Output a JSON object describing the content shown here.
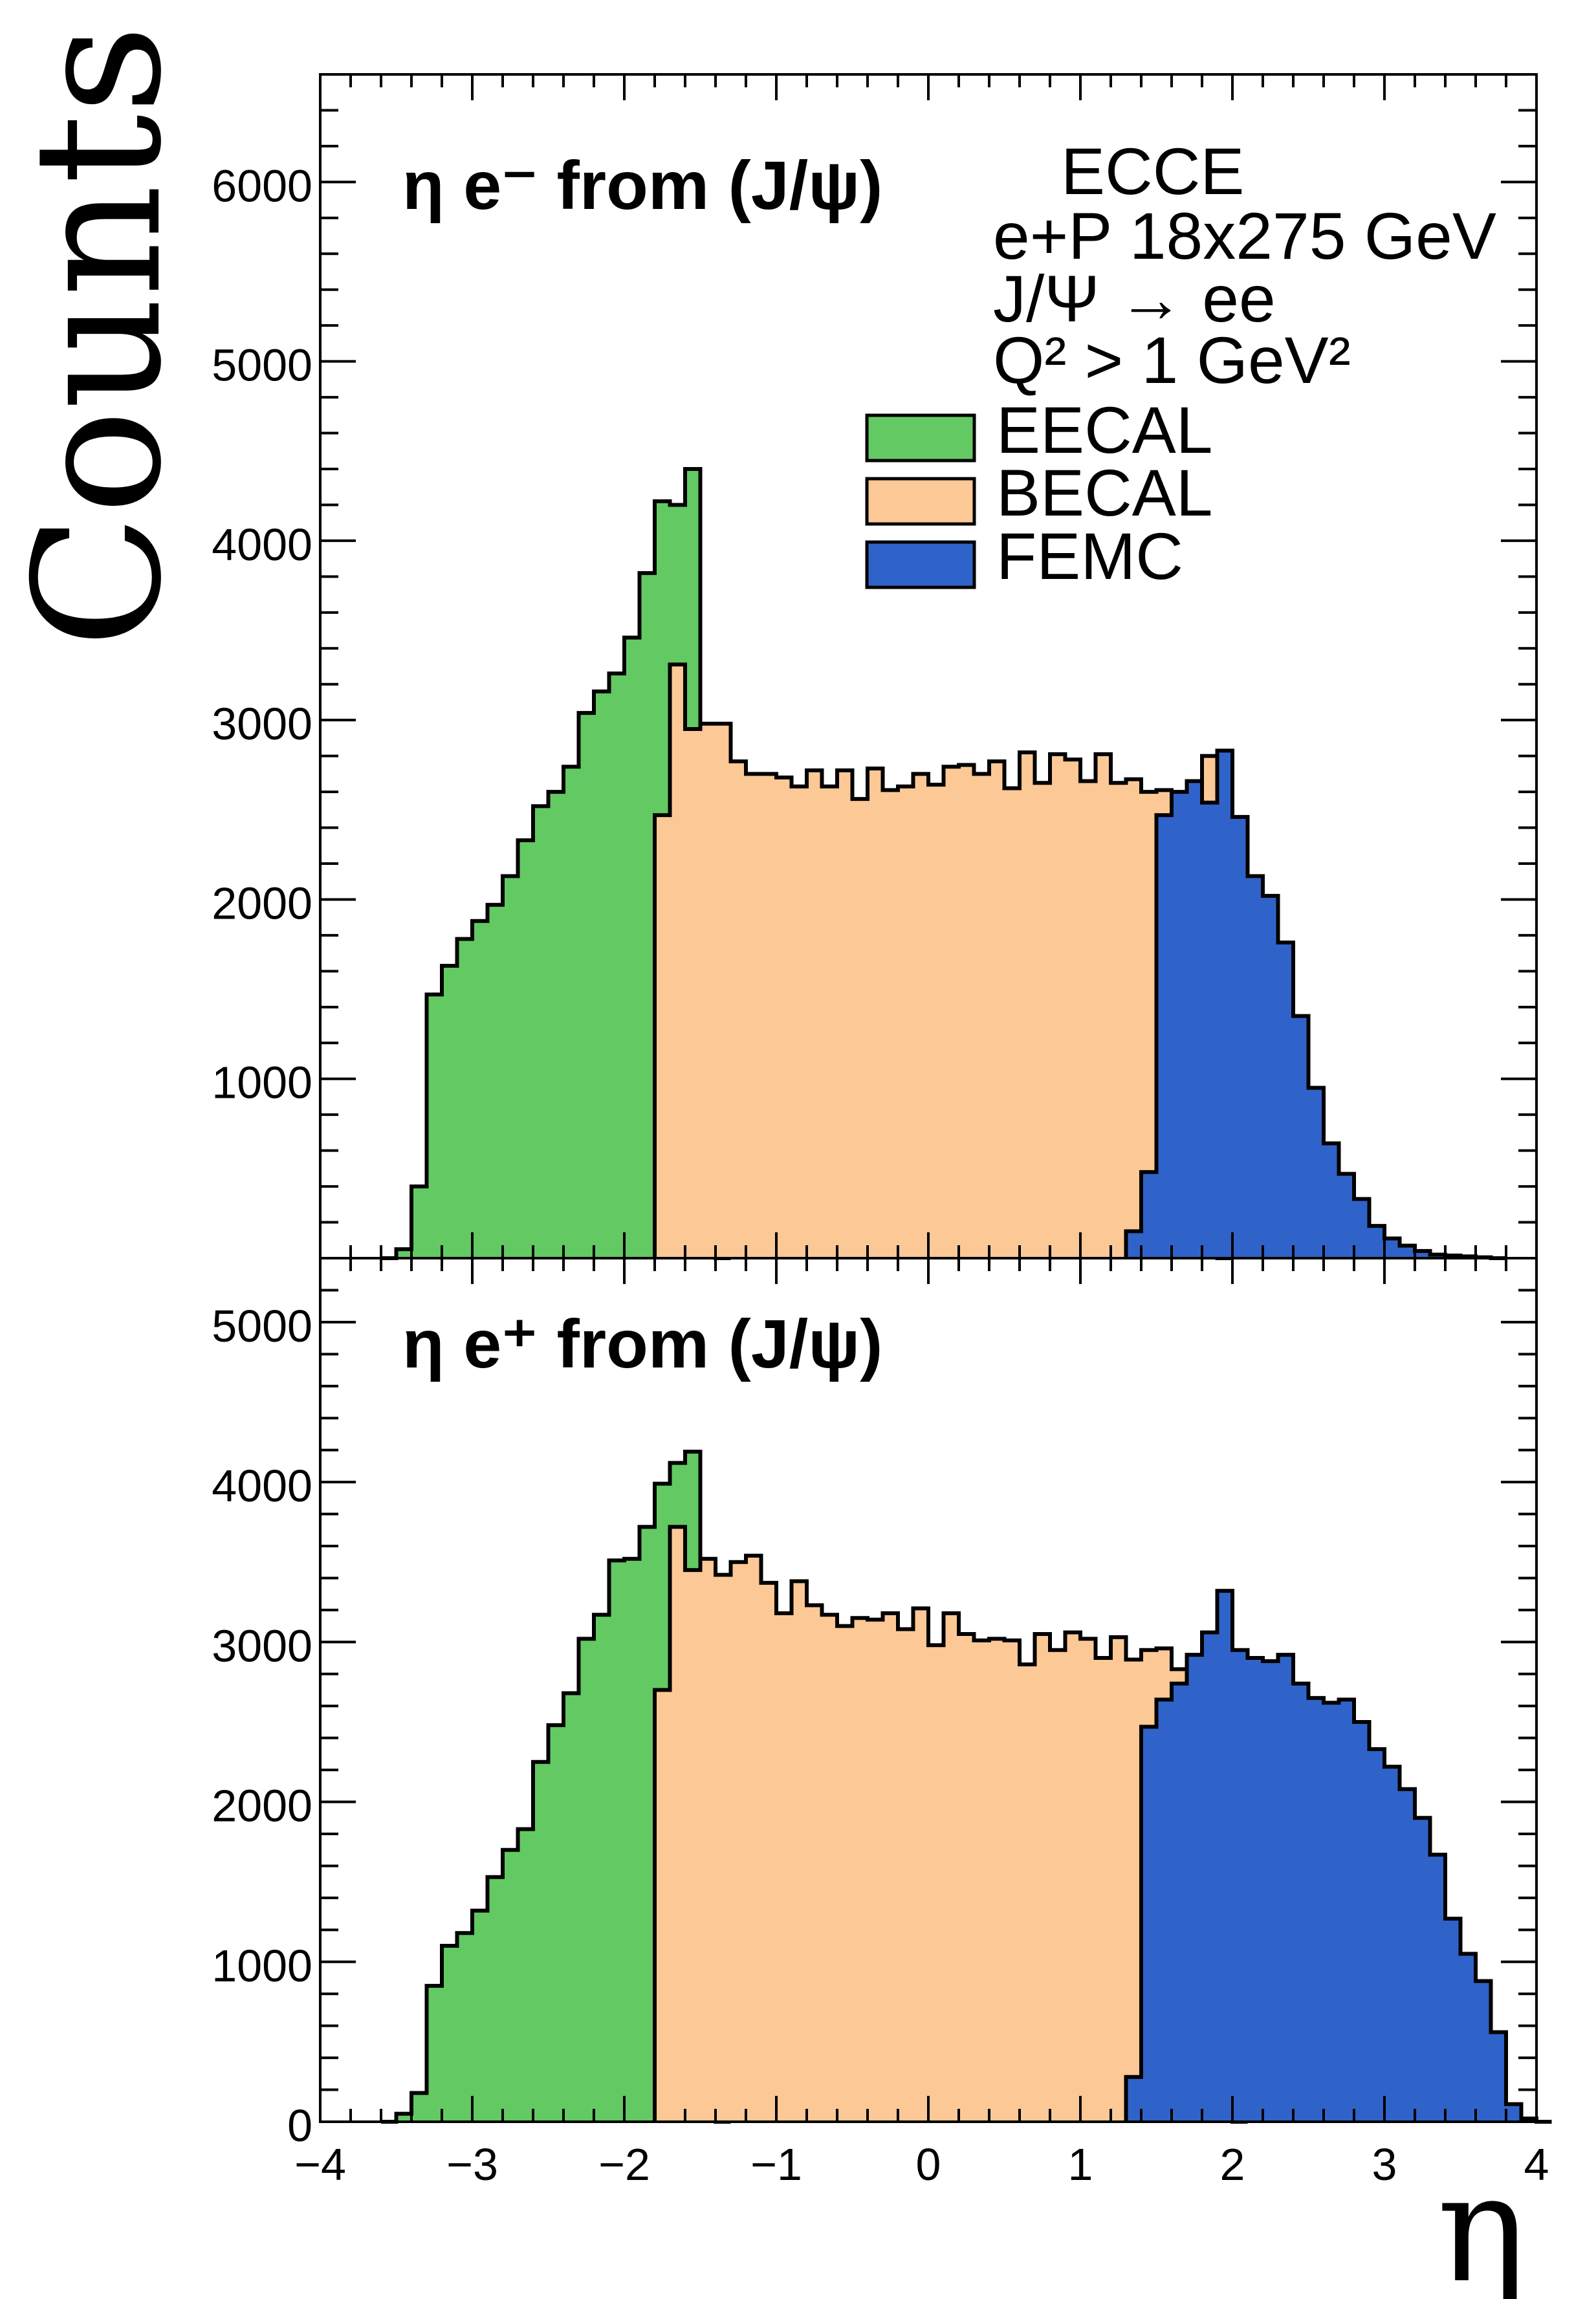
{
  "figure": {
    "ylabel": "Counts",
    "xlabel": "η",
    "experiment": "ECCE",
    "beam": "e+P 18x275 GeV",
    "decay": "J/Ψ → ee",
    "cut": "Q² > 1 GeV²"
  },
  "legend": {
    "placement": "top-right of upper panel",
    "entries": [
      {
        "label": "EECAL",
        "color": "#63c963"
      },
      {
        "label": "BECAL",
        "color": "#fcc896"
      },
      {
        "label": "FEMC",
        "color": "#3063c9"
      }
    ]
  },
  "chart_data": [
    {
      "type": "histogram",
      "title": "η e⁻ from (J/ψ)",
      "xlabel": "η",
      "ylabel": "Counts",
      "xlim": [
        -4,
        4
      ],
      "ylim": [
        0,
        6600
      ],
      "yticks": [
        1000,
        2000,
        3000,
        4000,
        5000,
        6000
      ],
      "bin_width": 0.1,
      "series": [
        {
          "name": "EECAL",
          "color": "#63c963",
          "x_start": -3.6,
          "values": [
            0,
            50,
            400,
            1470,
            1630,
            1780,
            1880,
            1970,
            2130,
            2330,
            2520,
            2600,
            2740,
            3040,
            3160,
            3260,
            3460,
            3820,
            4220,
            4200,
            4400,
            490,
            0
          ]
        },
        {
          "name": "BECAL",
          "color": "#fcc896",
          "x_start": -1.8,
          "values": [
            2470,
            3310,
            2950,
            2980,
            2980,
            2770,
            2700,
            2700,
            2680,
            2630,
            2720,
            2630,
            2720,
            2560,
            2730,
            2610,
            2630,
            2700,
            2640,
            2740,
            2750,
            2700,
            2770,
            2620,
            2820,
            2650,
            2810,
            2780,
            2660,
            2810,
            2650,
            2670,
            2600,
            2610,
            2580,
            2300,
            2800,
            0
          ]
        },
        {
          "name": "FEMC",
          "color": "#3063c9",
          "x_start": 1.3,
          "values": [
            150,
            480,
            2470,
            2600,
            2660,
            2540,
            2830,
            2460,
            2130,
            2020,
            1760,
            1350,
            950,
            640,
            470,
            330,
            180,
            110,
            70,
            40,
            20,
            15,
            10,
            5,
            0
          ]
        }
      ]
    },
    {
      "type": "histogram",
      "title": "η e⁺ from (J/ψ)",
      "xlabel": "η",
      "ylabel": "Counts",
      "xlim": [
        -4,
        4
      ],
      "ylim": [
        0,
        5400
      ],
      "yticks": [
        0,
        1000,
        2000,
        3000,
        4000,
        5000
      ],
      "xticks": [
        -4,
        -3,
        -2,
        -1,
        0,
        1,
        2,
        3,
        4
      ],
      "xtick_labels": [
        "−4",
        "−3",
        "−2",
        "−1",
        "0",
        "1",
        "2",
        "3",
        "4"
      ],
      "bin_width": 0.1,
      "series": [
        {
          "name": "EECAL",
          "color": "#63c963",
          "x_start": -3.6,
          "values": [
            0,
            50,
            180,
            850,
            1100,
            1180,
            1320,
            1530,
            1700,
            1830,
            2250,
            2480,
            2680,
            3020,
            3170,
            3510,
            3520,
            3720,
            3990,
            4120,
            4190,
            400,
            0
          ]
        },
        {
          "name": "BECAL",
          "color": "#fcc896",
          "x_start": -1.8,
          "values": [
            2700,
            3720,
            3450,
            3520,
            3420,
            3500,
            3540,
            3370,
            3180,
            3380,
            3230,
            3170,
            3100,
            3150,
            3140,
            3180,
            3080,
            3210,
            2980,
            3180,
            3050,
            3010,
            3020,
            3010,
            2860,
            3050,
            2950,
            3060,
            3020,
            2900,
            3030,
            2890,
            2950,
            2960,
            2830,
            2840,
            2450,
            3220,
            0
          ]
        },
        {
          "name": "FEMC",
          "color": "#3063c9",
          "x_start": 1.3,
          "values": [
            280,
            2470,
            2640,
            2740,
            2920,
            3060,
            3320,
            2950,
            2900,
            2880,
            2920,
            2740,
            2650,
            2620,
            2640,
            2500,
            2330,
            2220,
            2080,
            1900,
            1670,
            1270,
            1050,
            880,
            560,
            110,
            20,
            0
          ]
        }
      ]
    }
  ]
}
